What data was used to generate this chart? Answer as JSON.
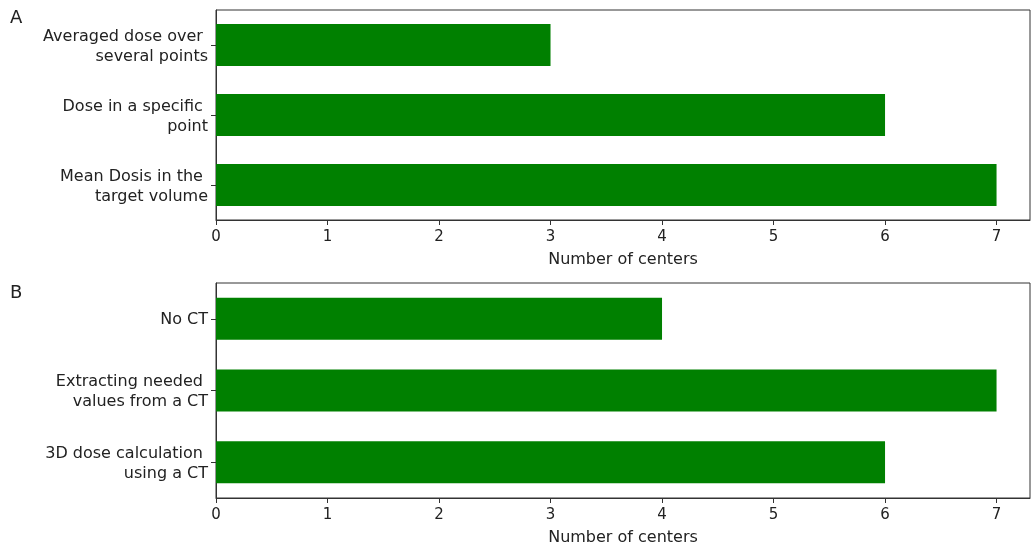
{
  "chart_data": [
    {
      "type": "bar",
      "orientation": "horizontal",
      "title": "A",
      "xlabel": "Number of centers",
      "categories": [
        "Averaged dose over several points",
        "Dose in a specific point",
        "Mean Dosis in the target volume"
      ],
      "values": [
        3,
        6,
        7
      ],
      "color": "#008000",
      "xlim": [
        0,
        7.3
      ],
      "xticks": [
        0,
        1,
        2,
        3,
        4,
        5,
        6,
        7
      ],
      "grid": false
    },
    {
      "type": "bar",
      "orientation": "horizontal",
      "title": "B",
      "xlabel": "Number of centers",
      "categories": [
        "No CT",
        "Extracting needed values from a CT",
        "3D dose calculation using a CT"
      ],
      "values": [
        4,
        7,
        6
      ],
      "color": "#008000",
      "xlim": [
        0,
        7.3
      ],
      "xticks": [
        0,
        1,
        2,
        3,
        4,
        5,
        6,
        7
      ],
      "grid": false
    }
  ]
}
